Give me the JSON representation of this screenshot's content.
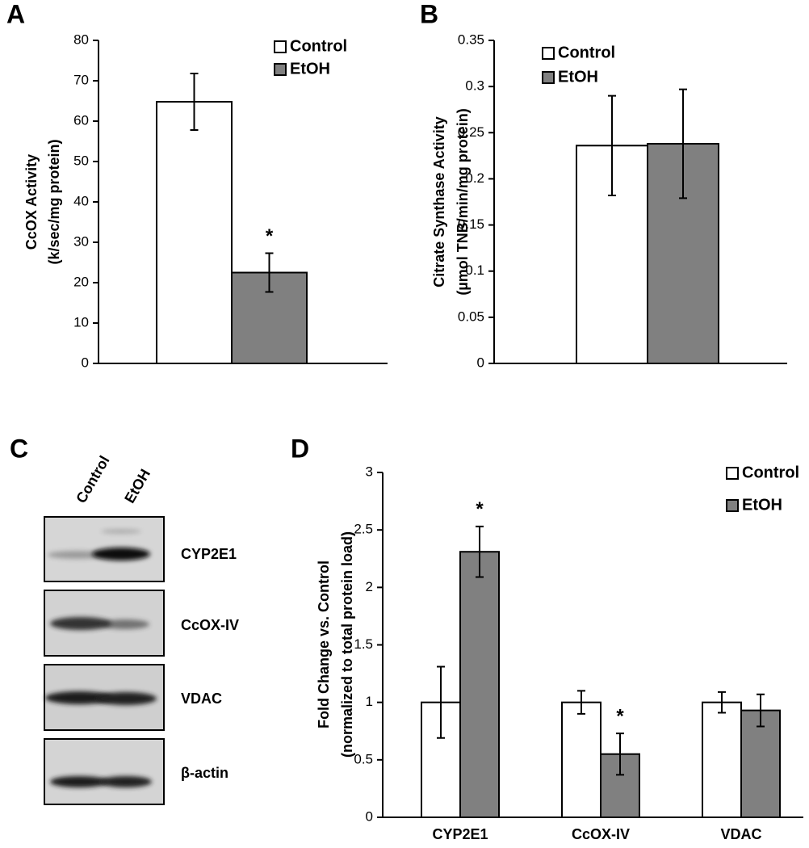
{
  "chart_data": [
    {
      "type": "bar",
      "panel_label": "A",
      "ylabel": [
        "CcOX Activity",
        "(k/sec/mg protein)"
      ],
      "categories": [
        null
      ],
      "ylim": [
        0,
        80
      ],
      "yticks": [
        0,
        10,
        20,
        30,
        40,
        50,
        60,
        70,
        80
      ],
      "series": [
        {
          "name": "Control",
          "color": "#ffffff",
          "values": [
            64.8
          ],
          "errors": [
            7.0
          ],
          "annotations": [
            null
          ]
        },
        {
          "name": "EtOH",
          "color": "#808080",
          "values": [
            22.5
          ],
          "errors": [
            4.8
          ],
          "annotations": [
            "*"
          ]
        }
      ]
    },
    {
      "type": "bar",
      "panel_label": "B",
      "ylabel": [
        "Citrate Synthase Activity",
        "(µmol TNB/min/mg protein)"
      ],
      "categories": [
        null
      ],
      "ylim": [
        0,
        0.35
      ],
      "yticks": [
        0,
        0.05,
        0.1,
        0.15,
        0.2,
        0.25,
        0.3,
        0.35
      ],
      "series": [
        {
          "name": "Control",
          "color": "#ffffff",
          "values": [
            0.236
          ],
          "errors": [
            0.054
          ],
          "annotations": [
            null
          ]
        },
        {
          "name": "EtOH",
          "color": "#808080",
          "values": [
            0.238
          ],
          "errors": [
            0.059
          ],
          "annotations": [
            null
          ]
        }
      ]
    },
    {
      "type": "bar",
      "panel_label": "D",
      "ylabel": [
        "Fold Change vs. Control",
        "(normalized to total protein load)"
      ],
      "categories": [
        "CYP2E1",
        "CcOX-IV",
        "VDAC"
      ],
      "ylim": [
        0,
        3
      ],
      "yticks": [
        0,
        0.5,
        1,
        1.5,
        2,
        2.5,
        3
      ],
      "series": [
        {
          "name": "Control",
          "color": "#ffffff",
          "values": [
            1,
            1,
            1
          ],
          "errors": [
            0.31,
            0.1,
            0.09
          ],
          "annotations": [
            null,
            null,
            null
          ]
        },
        {
          "name": "EtOH",
          "color": "#808080",
          "values": [
            2.31,
            0.55,
            0.93
          ],
          "errors": [
            0.22,
            0.18,
            0.14
          ],
          "annotations": [
            "*",
            "*",
            null
          ]
        }
      ]
    }
  ],
  "blot": {
    "panel_label": "C",
    "lanes": [
      "Control",
      "EtOH"
    ],
    "bands": [
      "CYP2E1",
      "CcOX-IV",
      "VDAC",
      "β-actin"
    ]
  }
}
